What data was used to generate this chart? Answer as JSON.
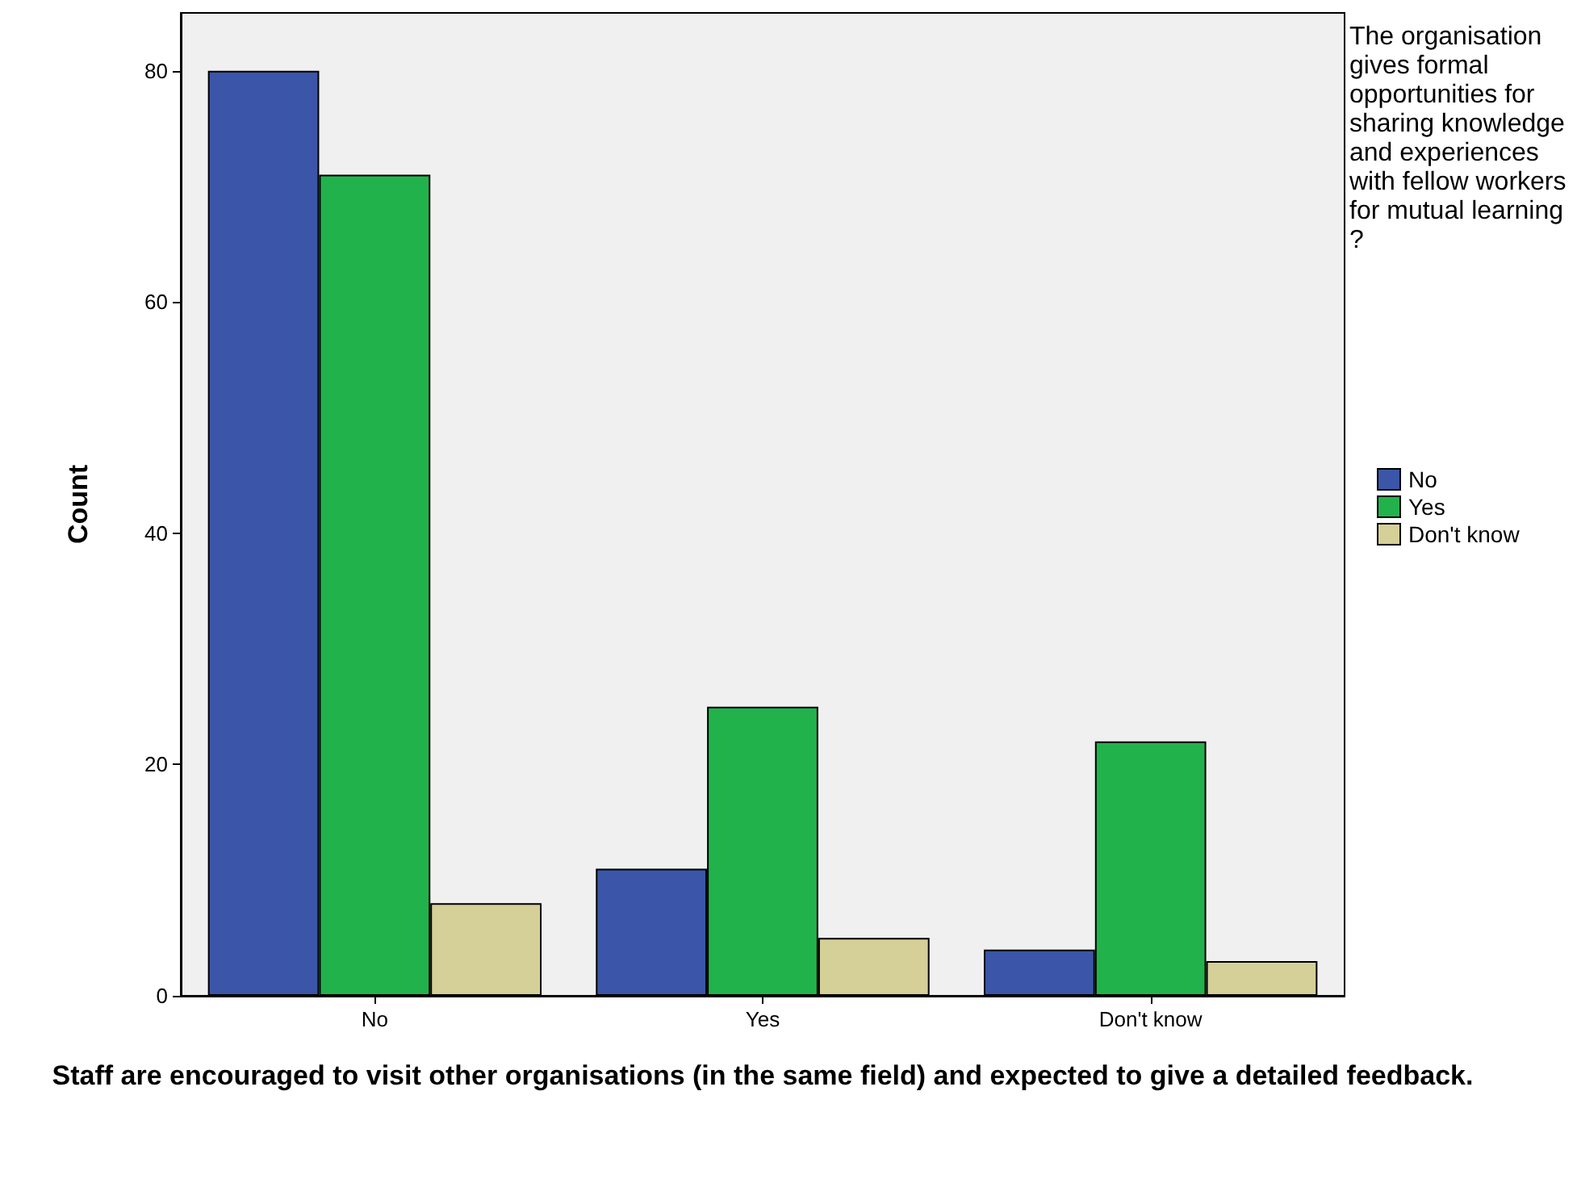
{
  "chart_data": {
    "type": "bar",
    "xlabel": "Staff are encouraged to visit other organisations (in the same field) and expected to give a detailed feedback.",
    "ylabel": "Count",
    "legend_title": "The organisation gives formal opportunities for sharing knowledge and experiences with fellow workers for mutual learning?",
    "categories": [
      "No",
      "Yes",
      "Don't know"
    ],
    "series": [
      {
        "name": "No",
        "color": "#3b55a8",
        "values": [
          80,
          11,
          4
        ]
      },
      {
        "name": "Yes",
        "color": "#22b24c",
        "values": [
          71,
          25,
          22
        ]
      },
      {
        "name": "Don't know",
        "color": "#d5cf98",
        "values": [
          8,
          5,
          3
        ]
      }
    ],
    "ylim": [
      0,
      85
    ],
    "yticks": [
      0,
      20,
      40,
      60,
      80
    ],
    "grid": false,
    "legend": "right"
  }
}
